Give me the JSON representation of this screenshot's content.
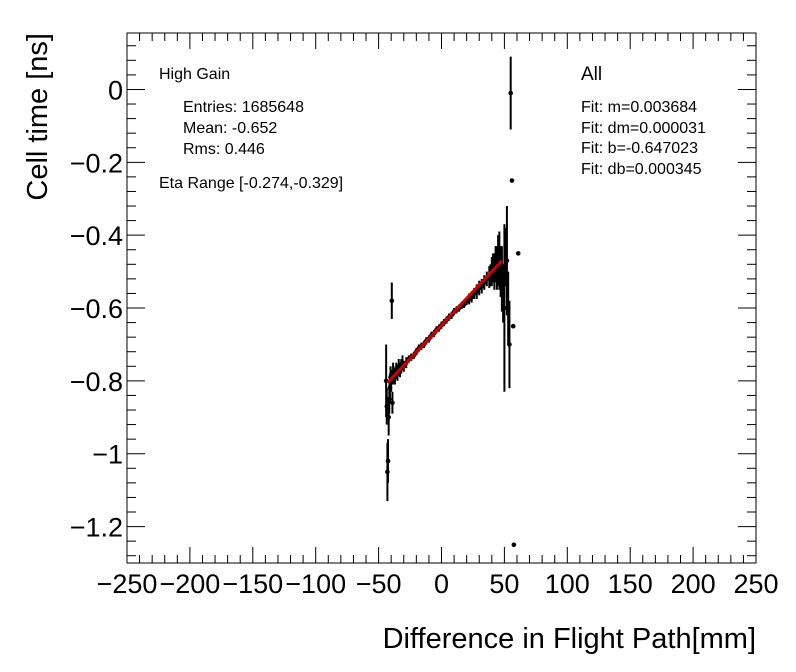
{
  "chart_data": {
    "type": "scatter",
    "title": "",
    "xlabel": "Difference in Flight Path[mm]",
    "ylabel": "Cell time [ns]",
    "xlim": [
      -250,
      250
    ],
    "ylim": [
      -1.3,
      0.155
    ],
    "x_ticks": [
      -250,
      -200,
      -150,
      -100,
      -50,
      0,
      50,
      100,
      150,
      200,
      250
    ],
    "x_tick_labels": [
      "−250",
      "−200",
      "−150",
      "−100",
      "−50",
      "0",
      "50",
      "100",
      "150",
      "200",
      "250"
    ],
    "y_ticks": [
      0,
      -0.2,
      -0.4,
      -0.6,
      -0.8,
      -1,
      -1.2
    ],
    "y_tick_labels": [
      "0",
      "−0.2",
      "−0.4",
      "−0.6",
      "−0.8",
      "−1",
      "−1.2"
    ],
    "annotations_left": {
      "title": "High Gain",
      "entries": "Entries: 1685648",
      "mean": "Mean: -0.652",
      "rms": "Rms: 0.446",
      "eta": "Eta Range [-0.274,-0.329]"
    },
    "annotations_right": {
      "title": "All",
      "m": "Fit: m=0.003684",
      "dm": "Fit: dm=0.000031",
      "b": "Fit: b=-0.647023",
      "db": "Fit: db=0.000345"
    },
    "fit": {
      "slope": 0.003684,
      "intercept": -0.647023,
      "x_range": [
        -43,
        48
      ],
      "color": "#cc0000"
    },
    "series": [
      {
        "name": "Cell time vs flight path difference",
        "points": [
          [
            -44,
            -0.8,
            0.1
          ],
          [
            -43.5,
            -0.87,
            0.05
          ],
          [
            -43,
            -1.05,
            0.08
          ],
          [
            -42.5,
            -1.02,
            0.06
          ],
          [
            -42,
            -0.9,
            0.05
          ],
          [
            -41.5,
            -0.85,
            0.04
          ],
          [
            -41,
            -0.82,
            0.04
          ],
          [
            -40.5,
            -0.79,
            0.03
          ],
          [
            -40,
            -0.8,
            0.03
          ],
          [
            -39.5,
            -0.58,
            0.05
          ],
          [
            -39,
            -0.86,
            0.03
          ],
          [
            -38.5,
            -0.78,
            0.03
          ],
          [
            -38,
            -0.78,
            0.02
          ],
          [
            -37,
            -0.79,
            0.02
          ],
          [
            -36,
            -0.77,
            0.02
          ],
          [
            -35,
            -0.78,
            0.02
          ],
          [
            -34,
            -0.76,
            0.02
          ],
          [
            -33,
            -0.77,
            0.02
          ],
          [
            -32,
            -0.76,
            0.02
          ],
          [
            -31,
            -0.75,
            0.02
          ],
          [
            -30,
            -0.76,
            0.015
          ],
          [
            -28,
            -0.75,
            0.015
          ],
          [
            -26,
            -0.74,
            0.01
          ],
          [
            -24,
            -0.735,
            0.01
          ],
          [
            -22,
            -0.73,
            0.01
          ],
          [
            -20,
            -0.72,
            0.01
          ],
          [
            -18,
            -0.71,
            0.01
          ],
          [
            -16,
            -0.705,
            0.01
          ],
          [
            -14,
            -0.7,
            0.01
          ],
          [
            -12,
            -0.69,
            0.01
          ],
          [
            -10,
            -0.685,
            0.01
          ],
          [
            -8,
            -0.675,
            0.01
          ],
          [
            -6,
            -0.67,
            0.01
          ],
          [
            -4,
            -0.66,
            0.01
          ],
          [
            -2,
            -0.655,
            0.01
          ],
          [
            0,
            -0.647,
            0.01
          ],
          [
            2,
            -0.64,
            0.01
          ],
          [
            4,
            -0.633,
            0.01
          ],
          [
            6,
            -0.625,
            0.01
          ],
          [
            8,
            -0.62,
            0.01
          ],
          [
            10,
            -0.61,
            0.01
          ],
          [
            12,
            -0.605,
            0.01
          ],
          [
            14,
            -0.6,
            0.01
          ],
          [
            16,
            -0.593,
            0.01
          ],
          [
            18,
            -0.59,
            0.01
          ],
          [
            20,
            -0.582,
            0.01
          ],
          [
            22,
            -0.575,
            0.015
          ],
          [
            24,
            -0.57,
            0.015
          ],
          [
            26,
            -0.56,
            0.015
          ],
          [
            28,
            -0.555,
            0.02
          ],
          [
            30,
            -0.545,
            0.02
          ],
          [
            32,
            -0.54,
            0.02
          ],
          [
            34,
            -0.53,
            0.02
          ],
          [
            36,
            -0.52,
            0.02
          ],
          [
            38,
            -0.515,
            0.03
          ],
          [
            39,
            -0.51,
            0.03
          ],
          [
            40,
            -0.5,
            0.04
          ],
          [
            41,
            -0.49,
            0.04
          ],
          [
            42,
            -0.5,
            0.05
          ],
          [
            43,
            -0.48,
            0.05
          ],
          [
            44,
            -0.49,
            0.06
          ],
          [
            45,
            -0.47,
            0.07
          ],
          [
            46,
            -0.47,
            0.08
          ],
          [
            47,
            -0.5,
            0.07
          ],
          [
            48,
            -0.52,
            0.09
          ],
          [
            49,
            -0.56,
            0.08
          ],
          [
            50,
            -0.6,
            0.23
          ],
          [
            51,
            -0.46,
            0.08
          ],
          [
            52,
            -0.47,
            0.15
          ],
          [
            53,
            -0.6,
            0.1
          ],
          [
            54,
            -0.7,
            0.12
          ],
          [
            55,
            -0.01,
            0.1
          ],
          [
            56,
            -0.25,
            0.0
          ],
          [
            57,
            -0.65,
            0.0
          ],
          [
            57.5,
            -1.25,
            0.0
          ],
          [
            61,
            -0.45,
            0.0
          ]
        ]
      }
    ]
  }
}
